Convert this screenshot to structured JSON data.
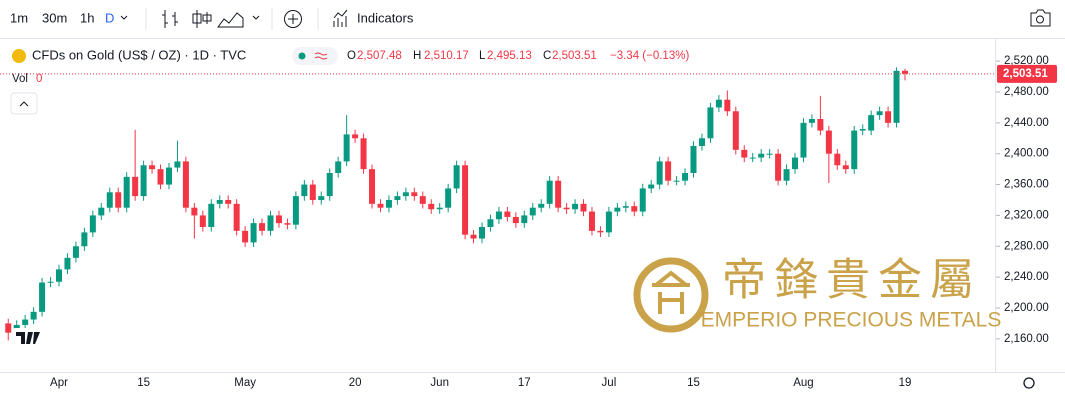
{
  "toolbar": {
    "intervals": [
      "1m",
      "30m",
      "1h",
      "D"
    ],
    "indicators": "Indicators"
  },
  "legend": {
    "symbol": "CFDs on Gold (US$ / OZ) · 1D · TVC",
    "o_key": "O",
    "o": "2,507.48",
    "h_key": "H",
    "h": "2,510.17",
    "l_key": "L",
    "l": "2,495.13",
    "c_key": "C",
    "c": "2,503.51",
    "change": "−3.34 (−0.13%)",
    "vol_key": "Vol",
    "vol": "0"
  },
  "watermark": {
    "chinese": "帝鋒貴金屬",
    "english": "EMPERIO PRECIOUS METALS"
  },
  "chart_data": {
    "type": "candlestick",
    "up_color": "#089981",
    "down_color": "#f23645",
    "categories": [
      null,
      null,
      null,
      null,
      null,
      null,
      "Apr",
      null,
      null,
      null,
      null,
      null,
      null,
      null,
      null,
      null,
      "15",
      null,
      null,
      null,
      null,
      null,
      null,
      null,
      null,
      null,
      null,
      null,
      "May",
      null,
      null,
      null,
      null,
      null,
      null,
      null,
      null,
      null,
      null,
      null,
      null,
      "20",
      null,
      null,
      null,
      null,
      null,
      null,
      null,
      null,
      null,
      "Jun",
      null,
      null,
      null,
      null,
      null,
      null,
      null,
      null,
      null,
      "17",
      null,
      null,
      null,
      null,
      null,
      null,
      null,
      null,
      null,
      "Jul",
      null,
      null,
      null,
      null,
      null,
      null,
      null,
      null,
      null,
      "15",
      null,
      null,
      null,
      null,
      null,
      null,
      null,
      null,
      null,
      null,
      null,
      null,
      "Aug",
      null,
      null,
      null,
      null,
      null,
      null,
      null,
      null,
      null,
      null,
      null,
      "19"
    ],
    "open": [
      2180,
      2168,
      2178,
      2185,
      2195,
      2233,
      2234,
      2250,
      2265,
      2280,
      2298,
      2320,
      2330,
      2350,
      2330,
      2370,
      2345,
      2385,
      2380,
      2360,
      2382,
      2390,
      2330,
      2320,
      2305,
      2335,
      2340,
      2335,
      2300,
      2285,
      2310,
      2300,
      2320,
      2310,
      2308,
      2345,
      2360,
      2340,
      2345,
      2375,
      2390,
      2425,
      2420,
      2380,
      2335,
      2330,
      2340,
      2345,
      2350,
      2345,
      2335,
      2328,
      2330,
      2355,
      2385,
      2295,
      2290,
      2305,
      2315,
      2325,
      2318,
      2310,
      2320,
      2330,
      2335,
      2365,
      2330,
      2328,
      2335,
      2325,
      2300,
      2298,
      2325,
      2330,
      2332,
      2325,
      2355,
      2360,
      2390,
      2365,
      2365,
      2375,
      2410,
      2420,
      2460,
      2470,
      2455,
      2405,
      2395,
      2395,
      2400,
      2400,
      2365,
      2380,
      2395,
      2440,
      2445,
      2430,
      2400,
      2385,
      2380,
      2430,
      2430,
      2450,
      2455,
      2440,
      2507.48
    ],
    "high": [
      2186,
      2184,
      2191,
      2201,
      2239,
      2240,
      2256,
      2271,
      2286,
      2304,
      2326,
      2336,
      2356,
      2356,
      2376,
      2431,
      2391,
      2391,
      2386,
      2388,
      2417,
      2396,
      2336,
      2326,
      2341,
      2346,
      2346,
      2341,
      2306,
      2316,
      2316,
      2326,
      2326,
      2316,
      2351,
      2366,
      2366,
      2351,
      2381,
      2396,
      2450,
      2431,
      2426,
      2386,
      2341,
      2346,
      2351,
      2356,
      2356,
      2351,
      2341,
      2336,
      2361,
      2391,
      2391,
      2301,
      2311,
      2321,
      2331,
      2331,
      2324,
      2326,
      2336,
      2341,
      2371,
      2371,
      2336,
      2341,
      2341,
      2331,
      2306,
      2331,
      2336,
      2338,
      2338,
      2361,
      2366,
      2396,
      2396,
      2371,
      2381,
      2416,
      2426,
      2466,
      2476,
      2482,
      2461,
      2411,
      2401,
      2406,
      2406,
      2406,
      2386,
      2401,
      2446,
      2451,
      2475,
      2436,
      2406,
      2391,
      2436,
      2438,
      2456,
      2461,
      2461,
      2512,
      2510.17
    ],
    "low": [
      2158,
      2162,
      2172,
      2179,
      2189,
      2227,
      2228,
      2244,
      2259,
      2274,
      2292,
      2314,
      2324,
      2324,
      2324,
      2339,
      2339,
      2374,
      2354,
      2354,
      2376,
      2324,
      2290,
      2299,
      2299,
      2329,
      2329,
      2294,
      2279,
      2279,
      2294,
      2294,
      2304,
      2302,
      2302,
      2339,
      2334,
      2334,
      2339,
      2369,
      2384,
      2414,
      2374,
      2329,
      2324,
      2324,
      2334,
      2339,
      2339,
      2329,
      2322,
      2322,
      2324,
      2349,
      2289,
      2284,
      2284,
      2299,
      2309,
      2312,
      2304,
      2304,
      2314,
      2324,
      2329,
      2324,
      2322,
      2322,
      2319,
      2294,
      2292,
      2292,
      2319,
      2324,
      2319,
      2319,
      2349,
      2354,
      2359,
      2359,
      2359,
      2369,
      2404,
      2414,
      2454,
      2449,
      2399,
      2389,
      2389,
      2389,
      2394,
      2359,
      2359,
      2374,
      2389,
      2434,
      2424,
      2362,
      2379,
      2374,
      2374,
      2424,
      2424,
      2444,
      2434,
      2434,
      2495.13
    ],
    "close": [
      2168,
      2178,
      2185,
      2195,
      2233,
      2234,
      2250,
      2265,
      2280,
      2298,
      2320,
      2330,
      2350,
      2330,
      2370,
      2345,
      2385,
      2380,
      2360,
      2382,
      2390,
      2330,
      2320,
      2305,
      2335,
      2340,
      2335,
      2300,
      2285,
      2310,
      2300,
      2320,
      2310,
      2308,
      2345,
      2360,
      2340,
      2345,
      2375,
      2390,
      2425,
      2420,
      2380,
      2335,
      2330,
      2340,
      2345,
      2350,
      2345,
      2335,
      2328,
      2330,
      2355,
      2385,
      2295,
      2290,
      2305,
      2315,
      2325,
      2318,
      2310,
      2320,
      2330,
      2335,
      2365,
      2330,
      2328,
      2335,
      2325,
      2300,
      2298,
      2325,
      2330,
      2332,
      2325,
      2355,
      2360,
      2390,
      2365,
      2365,
      2375,
      2410,
      2420,
      2460,
      2470,
      2455,
      2405,
      2395,
      2395,
      2400,
      2400,
      2365,
      2380,
      2395,
      2440,
      2445,
      2430,
      2400,
      2385,
      2380,
      2430,
      2432,
      2450,
      2455,
      2440,
      2507.48,
      2503.51
    ],
    "ylim": [
      2117,
      2550
    ],
    "yticks": [
      {
        "value": 2160,
        "label": "2,160.00"
      },
      {
        "value": 2200,
        "label": "2,200.00"
      },
      {
        "value": 2240,
        "label": "2,240.00"
      },
      {
        "value": 2280,
        "label": "2,280.00"
      },
      {
        "value": 2320,
        "label": "2,320.00"
      },
      {
        "value": 2360,
        "label": "2,360.00"
      },
      {
        "value": 2400,
        "label": "2,400.00"
      },
      {
        "value": 2440,
        "label": "2,440.00"
      },
      {
        "value": 2480,
        "label": "2,480.00"
      },
      {
        "value": 2520,
        "label": "2,520.00"
      }
    ],
    "last_price": {
      "value": 2503.51,
      "label": "2,503.51"
    }
  }
}
